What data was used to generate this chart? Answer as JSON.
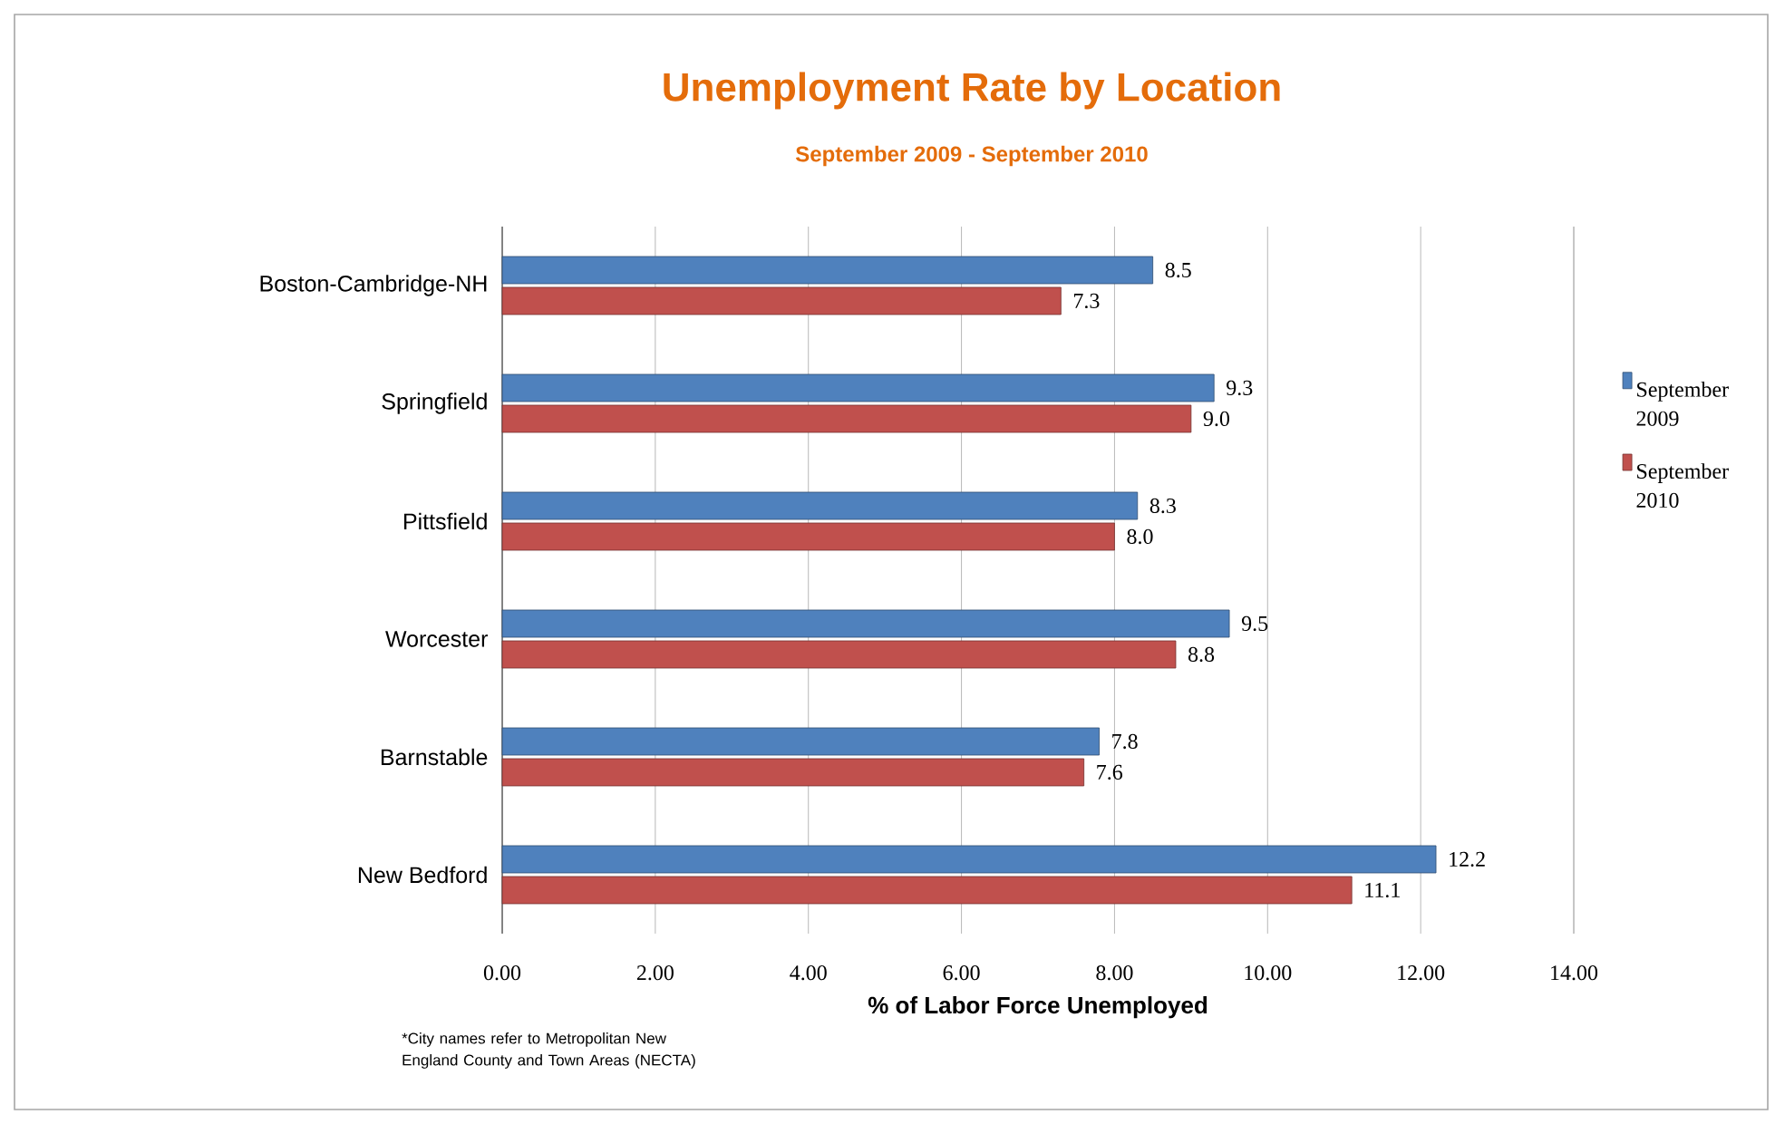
{
  "chart_data": {
    "type": "bar",
    "orientation": "horizontal",
    "title": "Unemployment Rate by Location",
    "subtitle": "September 2009 - September 2010",
    "xlabel": "% of Labor Force Unemployed",
    "categories": [
      "Boston-Cambridge-NH",
      "Springfield",
      "Pittsfield",
      "Worcester",
      "Barnstable",
      "New Bedford"
    ],
    "series": [
      {
        "name": "September 2009",
        "color": "#4f81bd",
        "values": [
          8.5,
          9.3,
          8.3,
          9.5,
          7.8,
          12.2
        ],
        "value_labels": [
          "8.5",
          "9.3",
          "8.3",
          "9.5",
          "7.8",
          "12.2"
        ]
      },
      {
        "name": "September 2010",
        "color": "#c0504d",
        "values": [
          7.3,
          9.0,
          8.0,
          8.8,
          7.6,
          11.1
        ],
        "value_labels": [
          "7.3",
          "9.0",
          "8.0",
          "8.8",
          "7.6",
          "11.1"
        ]
      }
    ],
    "xlim": [
      0,
      14
    ],
    "xticks": [
      {
        "value": 0,
        "label": "0.00"
      },
      {
        "value": 2,
        "label": "2.00"
      },
      {
        "value": 4,
        "label": "4.00"
      },
      {
        "value": 6,
        "label": "6.00"
      },
      {
        "value": 8,
        "label": "8.00"
      },
      {
        "value": 10,
        "label": "10.00"
      },
      {
        "value": 12,
        "label": "12.00"
      },
      {
        "value": 14,
        "label": "14.00"
      }
    ],
    "grid": "x",
    "legend": "right",
    "annotations": [
      "*City names refer to Metropolitan New England County and Town Areas (NECTA)"
    ]
  }
}
